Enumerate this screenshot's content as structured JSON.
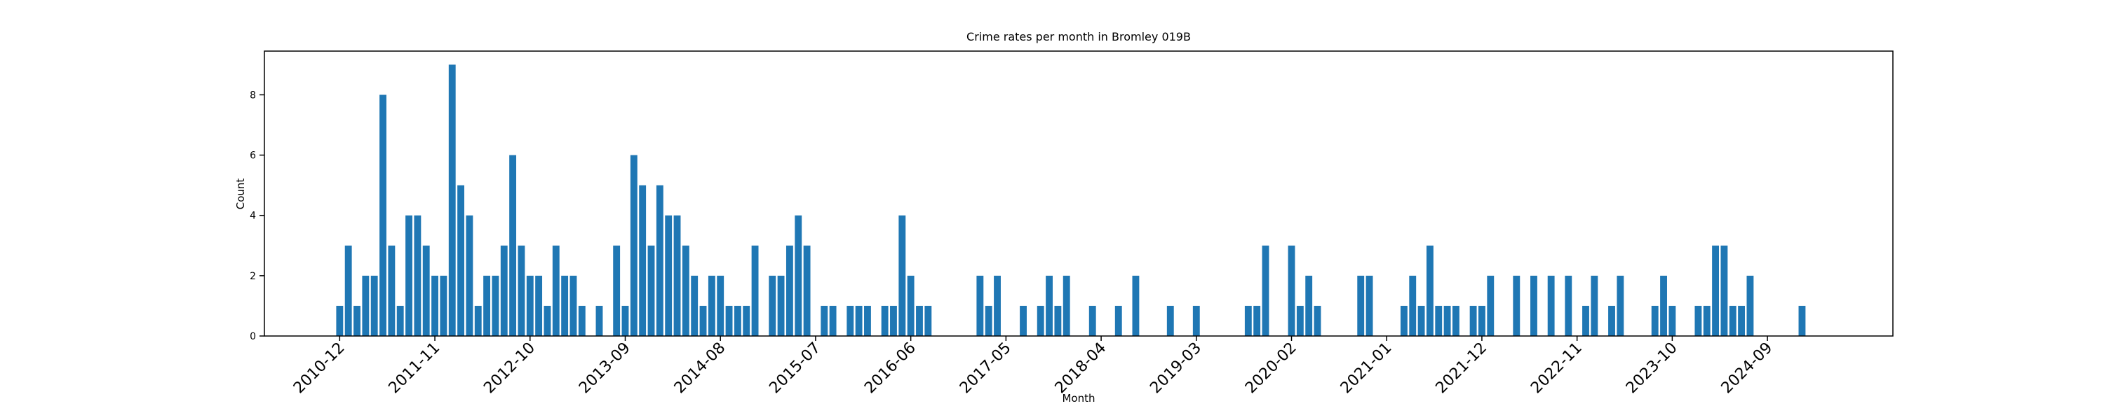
{
  "chart_data": {
    "type": "bar",
    "title": "Crime rates per month in Bromley 019B",
    "x_label": "Month",
    "y_label": "Count",
    "color": "#1f77b4",
    "categories": [
      "2010-12",
      null,
      null,
      null,
      null,
      null,
      null,
      null,
      null,
      null,
      null,
      "2011-11",
      null,
      null,
      null,
      null,
      null,
      null,
      null,
      null,
      null,
      null,
      "2012-10",
      null,
      null,
      null,
      null,
      null,
      null,
      null,
      null,
      null,
      null,
      "2013-09",
      null,
      null,
      null,
      null,
      null,
      null,
      null,
      null,
      null,
      null,
      "2014-08",
      null,
      null,
      null,
      null,
      null,
      null,
      null,
      null,
      null,
      null,
      "2015-07",
      null,
      null,
      null,
      null,
      null,
      null,
      null,
      null,
      null,
      null,
      "2016-06",
      null,
      null,
      null,
      null,
      null,
      null,
      null,
      null,
      null,
      null,
      "2017-05",
      null,
      null,
      null,
      null,
      null,
      null,
      null,
      null,
      null,
      null,
      "2018-04",
      null,
      null,
      null,
      null,
      null,
      null,
      null,
      null,
      null,
      null,
      "2019-03",
      null,
      null,
      null,
      null,
      null,
      null,
      null,
      null,
      null,
      null,
      "2020-02",
      null,
      null,
      null,
      null,
      null,
      null,
      null,
      null,
      null,
      null,
      "2021-01",
      null,
      null,
      null,
      null,
      null,
      null,
      null,
      null,
      null,
      null,
      "2021-12",
      null,
      null,
      null,
      null,
      null,
      null,
      null,
      null,
      null,
      null,
      "2022-11",
      null,
      null,
      null,
      null,
      null,
      null,
      null,
      null,
      null,
      null,
      "2023-10",
      null,
      null,
      null,
      null,
      null,
      null,
      null,
      null,
      null,
      null,
      "2024-09",
      null,
      null,
      null,
      null
    ],
    "values": [
      1,
      3,
      1,
      2,
      2,
      8,
      3,
      1,
      4,
      4,
      3,
      2,
      2,
      9,
      5,
      4,
      1,
      2,
      2,
      3,
      6,
      3,
      2,
      2,
      1,
      3,
      2,
      2,
      1,
      0,
      1,
      0,
      3,
      1,
      6,
      5,
      3,
      5,
      4,
      4,
      3,
      2,
      1,
      2,
      2,
      1,
      1,
      1,
      3,
      0,
      2,
      2,
      3,
      4,
      3,
      0,
      1,
      1,
      0,
      1,
      1,
      1,
      0,
      1,
      1,
      4,
      2,
      1,
      1,
      0,
      0,
      0,
      0,
      0,
      2,
      1,
      2,
      0,
      0,
      1,
      0,
      1,
      2,
      1,
      2,
      0,
      0,
      1,
      0,
      0,
      1,
      0,
      2,
      0,
      0,
      0,
      1,
      0,
      0,
      1,
      0,
      0,
      0,
      0,
      0,
      1,
      1,
      3,
      0,
      0,
      3,
      1,
      2,
      1,
      0,
      0,
      0,
      0,
      2,
      2,
      0,
      0,
      0,
      1,
      2,
      1,
      3,
      1,
      1,
      1,
      0,
      1,
      1,
      2,
      0,
      0,
      2,
      0,
      2,
      0,
      2,
      0,
      2,
      0,
      1,
      2,
      0,
      1,
      2,
      0,
      0,
      0,
      1,
      2,
      1,
      0,
      0,
      1,
      1,
      3,
      3,
      1,
      1,
      2,
      0,
      0,
      0,
      0,
      0,
      1
    ],
    "ylim": [
      0,
      9.45
    ],
    "yticks": [
      0,
      2,
      4,
      6,
      8
    ]
  }
}
